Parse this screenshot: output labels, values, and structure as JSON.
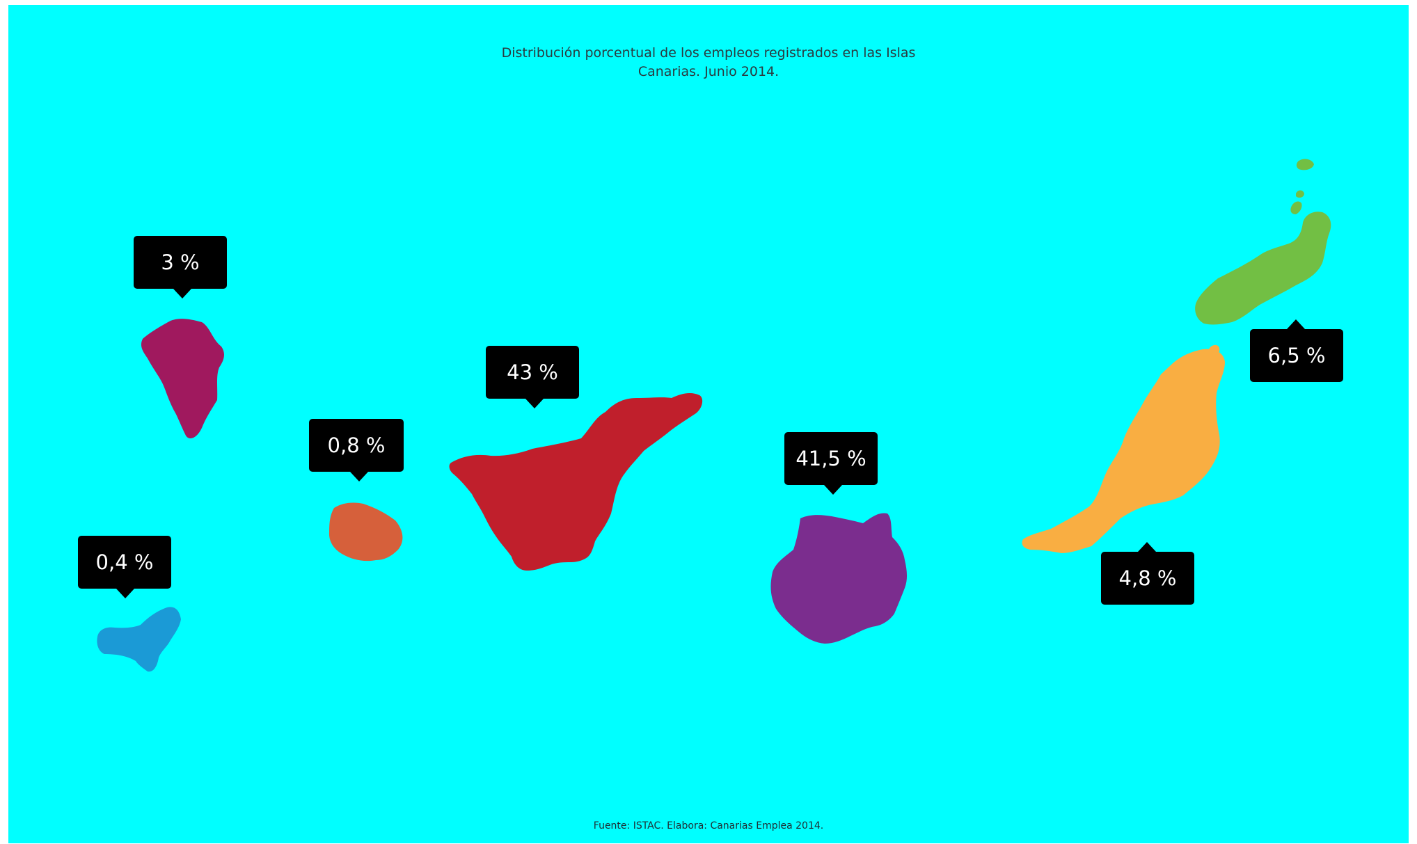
{
  "title": "Distribución  porcentual de los empleos registrados en las Islas\nCanarias. Junio 2014.",
  "source": "Fuente: ISTAC. Elabora: Canarias Emplea 2014.",
  "colors": {
    "background": "#00ffff",
    "label_box": "#000000",
    "label_text": "#ffffff"
  },
  "islands": [
    {
      "key": "la-palma",
      "label": "3 %",
      "color": "#a0195e"
    },
    {
      "key": "el-hierro",
      "label": "0,4 %",
      "color": "#1b9ad6"
    },
    {
      "key": "la-gomera",
      "label": "0,8 %",
      "color": "#d6603b"
    },
    {
      "key": "tenerife",
      "label": "43 %",
      "color": "#c01f2c"
    },
    {
      "key": "gran-canaria",
      "label": "41,5 %",
      "color": "#7b2d8e"
    },
    {
      "key": "fuerteventura",
      "label": "4,8 %",
      "color": "#f9ae42"
    },
    {
      "key": "lanzarote",
      "label": "6,5 %",
      "color": "#72bf44"
    }
  ]
}
